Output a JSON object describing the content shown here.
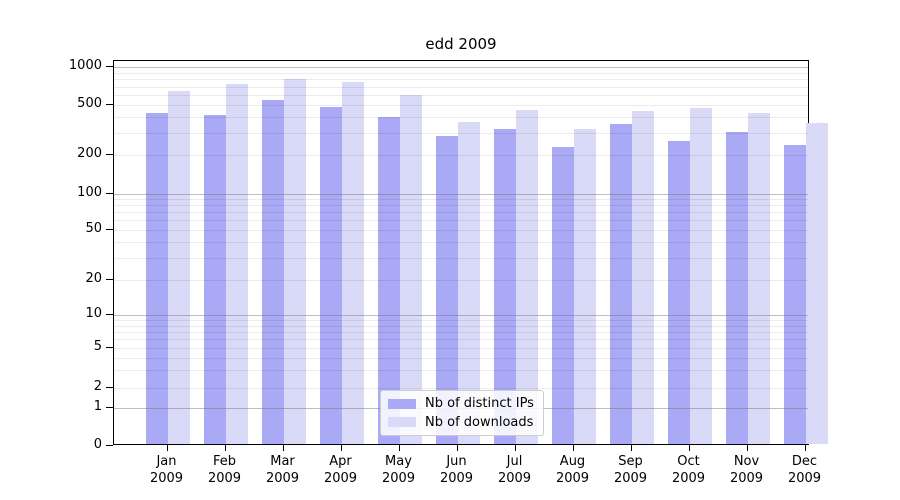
{
  "title": "edd 2009",
  "chart_data": {
    "type": "bar",
    "title": "edd 2009",
    "xlabel": "",
    "ylabel": "",
    "yscale": "symlog",
    "ylim": [
      0,
      1000
    ],
    "yticks": [
      "0",
      "1",
      "2",
      "5",
      "10",
      "20",
      "50",
      "100",
      "200",
      "500",
      "1000"
    ],
    "grid": true,
    "legend_position": "lower center",
    "categories": [
      {
        "month": "Jan",
        "year": "2009"
      },
      {
        "month": "Feb",
        "year": "2009"
      },
      {
        "month": "Mar",
        "year": "2009"
      },
      {
        "month": "Apr",
        "year": "2009"
      },
      {
        "month": "May",
        "year": "2009"
      },
      {
        "month": "Jun",
        "year": "2009"
      },
      {
        "month": "Jul",
        "year": "2009"
      },
      {
        "month": "Aug",
        "year": "2009"
      },
      {
        "month": "Sep",
        "year": "2009"
      },
      {
        "month": "Oct",
        "year": "2009"
      },
      {
        "month": "Nov",
        "year": "2009"
      },
      {
        "month": "Dec",
        "year": "2009"
      }
    ],
    "series": [
      {
        "name": "Nb of distinct IPs",
        "color": "#a9a9f5",
        "values": [
          430,
          420,
          550,
          485,
          400,
          285,
          325,
          230,
          350,
          260,
          305,
          240
        ]
      },
      {
        "name": "Nb of downloads",
        "color": "#d9d9f8",
        "values": [
          640,
          740,
          800,
          760,
          600,
          365,
          455,
          320,
          445,
          470,
          435,
          360
        ]
      }
    ]
  }
}
